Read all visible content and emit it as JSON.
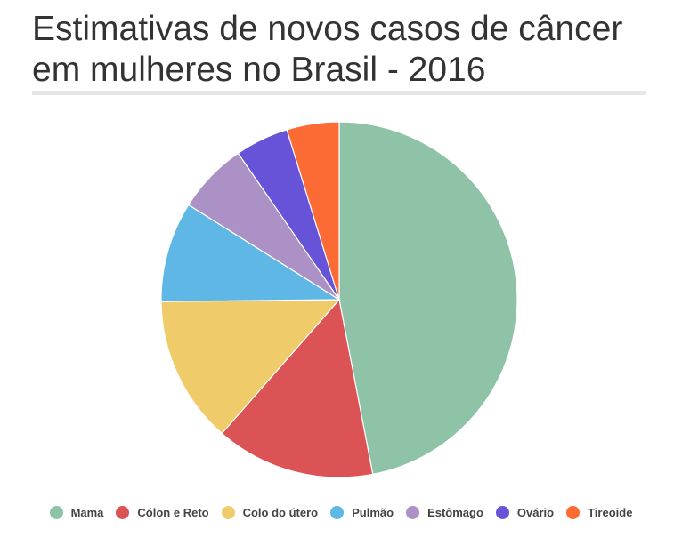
{
  "title": "Estimativas de novos casos de câncer em mulheres no Brasil - 2016",
  "chart_data": {
    "type": "pie",
    "title": "Estimativas de novos casos de câncer em mulheres no Brasil - 2016",
    "start_angle_deg": 0,
    "direction": "clockwise",
    "legend": "bottom",
    "slices": [
      {
        "label": "Mama",
        "value": 47.4,
        "color": "#8ec3a7"
      },
      {
        "label": "Cólon e Reto",
        "value": 14.6,
        "color": "#dc5356"
      },
      {
        "label": "Colo do útero",
        "value": 13.5,
        "color": "#f0cb69"
      },
      {
        "label": "Pulmão",
        "value": 9.2,
        "color": "#5fb7e5"
      },
      {
        "label": "Estômago",
        "value": 6.5,
        "color": "#ab91c5"
      },
      {
        "label": "Ovário",
        "value": 4.9,
        "color": "#6753d7"
      },
      {
        "label": "Tireoide",
        "value": 4.8,
        "color": "#fd6b35"
      }
    ]
  }
}
